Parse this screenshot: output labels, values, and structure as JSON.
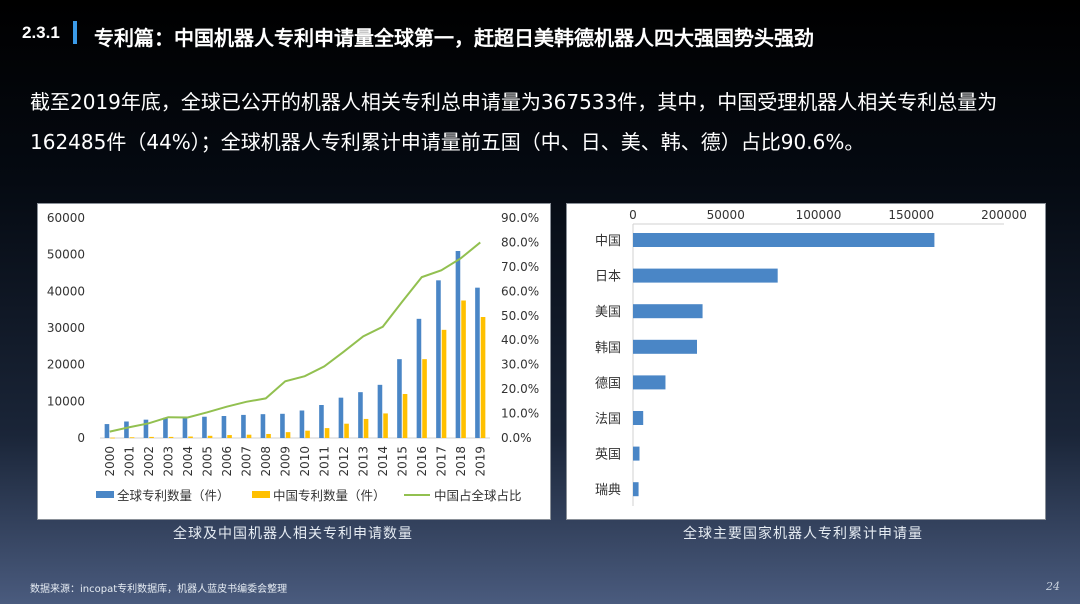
{
  "header": {
    "section_number": "2.3.1",
    "title": "专利篇：中国机器人专利申请量全球第一，赶超日美韩德机器人四大强国势头强劲"
  },
  "summary": {
    "text": "截至2019年底，全球已公开的机器人相关专利总申请量为367533件，其中，中国受理机器人相关专利总量为162485件（44%）；全球机器人专利累计申请量前五国（中、日、美、韩、德）占比90.6%。"
  },
  "captions": {
    "left": "全球及中国机器人相关专利申请数量",
    "right": "全球主要国家机器人专利累计申请量"
  },
  "footer": {
    "source": "数据来源：incopat专利数据库，机器人蓝皮书编委会整理",
    "page_number": "24"
  },
  "colors": {
    "global_bar": "#4a86c6",
    "china_bar": "#ffc000",
    "share_line": "#92c050",
    "country_bar": "#4a86c6",
    "accent": "#3b9be8"
  },
  "chart_data": [
    {
      "type": "bar",
      "title": "全球及中国机器人相关专利申请数量",
      "categories": [
        "2000",
        "2001",
        "2002",
        "2003",
        "2004",
        "2005",
        "2006",
        "2007",
        "2008",
        "2009",
        "2010",
        "2011",
        "2012",
        "2013",
        "2014",
        "2015",
        "2016",
        "2017",
        "2018",
        "2019"
      ],
      "series": [
        {
          "name": "全球专利数量（件）",
          "type": "bar",
          "axis": "left",
          "values": [
            3800,
            4500,
            5000,
            5500,
            5500,
            5800,
            6000,
            6300,
            6500,
            6600,
            7500,
            9000,
            11000,
            12500,
            14500,
            21500,
            32500,
            43000,
            51000,
            41000
          ]
        },
        {
          "name": "中国专利数量（件）",
          "type": "bar",
          "axis": "left",
          "values": [
            100,
            200,
            300,
            300,
            400,
            600,
            800,
            900,
            1100,
            1600,
            2000,
            2700,
            3900,
            5200,
            6700,
            12000,
            21500,
            29500,
            37500,
            33000
          ]
        },
        {
          "name": "中国占全球占比",
          "type": "line",
          "axis": "right",
          "values": [
            2.6,
            4.4,
            6.0,
            8.5,
            8.4,
            10.5,
            12.8,
            14.8,
            16.2,
            23.2,
            25.3,
            29.3,
            35.3,
            41.6,
            45.5,
            55.8,
            65.8,
            68.6,
            73.5,
            80.0
          ]
        }
      ],
      "yticks_left": [
        "0",
        "10000",
        "20000",
        "30000",
        "40000",
        "50000",
        "60000"
      ],
      "yticks_right": [
        "0.0%",
        "10.0%",
        "20.0%",
        "30.0%",
        "40.0%",
        "50.0%",
        "60.0%",
        "70.0%",
        "80.0%",
        "90.0%"
      ],
      "ylim_left": [
        0,
        60000
      ],
      "ylim_right": [
        0,
        90
      ],
      "legend_position": "bottom",
      "grid": false
    },
    {
      "type": "bar",
      "orientation": "horizontal",
      "title": "全球主要国家机器人专利累计申请量",
      "categories": [
        "中国",
        "日本",
        "美国",
        "韩国",
        "德国",
        "法国",
        "英国",
        "瑞典"
      ],
      "values": [
        162485,
        78000,
        37500,
        34500,
        17500,
        5500,
        3500,
        3000
      ],
      "xticks": [
        "0",
        "50000",
        "100000",
        "150000",
        "200000"
      ],
      "xlim": [
        0,
        200000
      ],
      "axis_position": "top",
      "grid": false
    }
  ]
}
